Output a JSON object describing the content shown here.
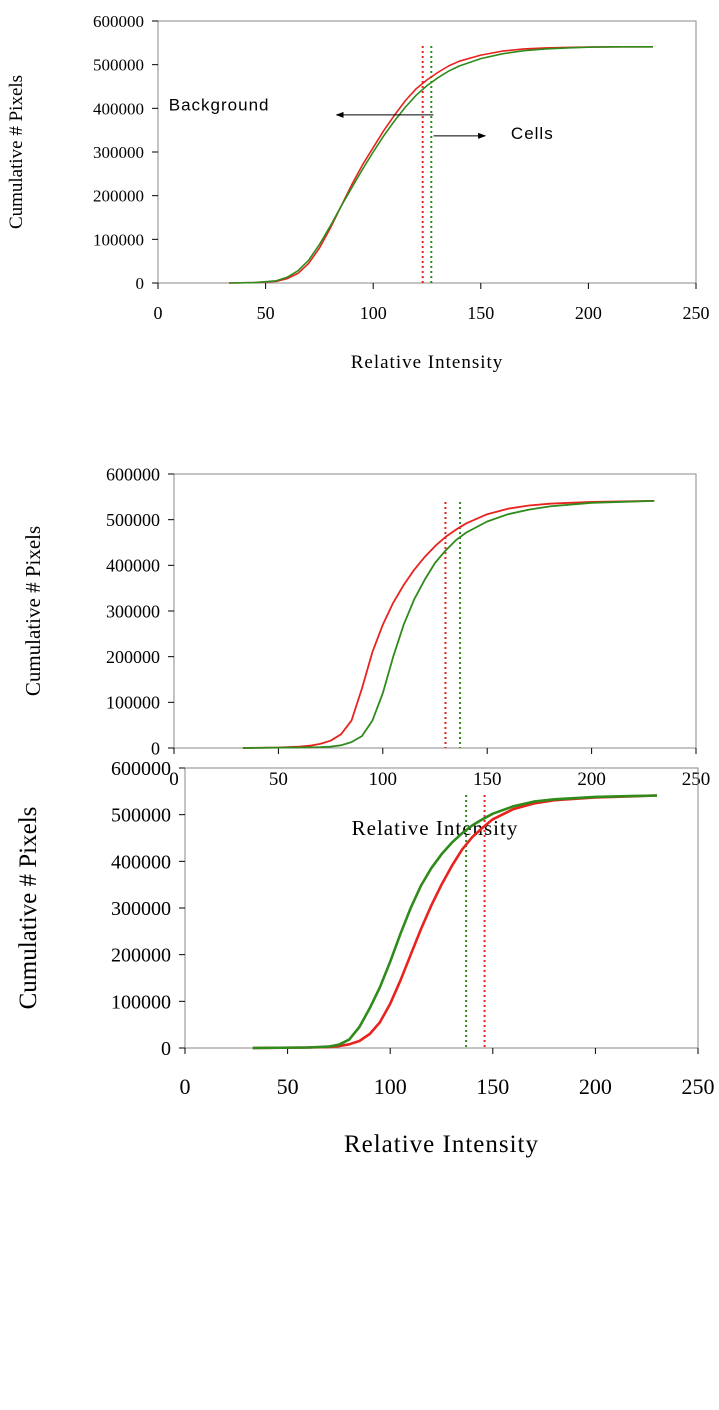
{
  "chart_data": [
    {
      "type": "line",
      "title": "",
      "xlabel": "Relative Intensity",
      "ylabel": "Cumulative # Pixels",
      "xlim": [
        0,
        250
      ],
      "ylim": [
        0,
        600000
      ],
      "xticks": [
        "0",
        "50",
        "100",
        "150",
        "200",
        "250"
      ],
      "yticks": [
        "0",
        "100000",
        "200000",
        "300000",
        "400000",
        "500000",
        "600000"
      ],
      "grid": false,
      "legend": "none",
      "series": [
        {
          "color": "#e8231d",
          "x": [
            33,
            45,
            55,
            60,
            65,
            70,
            75,
            80,
            85,
            90,
            95,
            100,
            105,
            110,
            115,
            120,
            125,
            130,
            135,
            140,
            150,
            160,
            170,
            180,
            190,
            200,
            215,
            230
          ],
          "y": [
            0,
            1000,
            4000,
            10000,
            22000,
            45000,
            80000,
            125000,
            175000,
            225000,
            270000,
            310000,
            350000,
            385000,
            418000,
            445000,
            465000,
            482000,
            497000,
            508000,
            522000,
            531000,
            536000,
            538500,
            539500,
            540500,
            541000,
            541000
          ]
        },
        {
          "color": "#2e8b1c",
          "x": [
            33,
            45,
            55,
            60,
            65,
            70,
            75,
            80,
            85,
            90,
            95,
            100,
            105,
            110,
            115,
            120,
            125,
            130,
            135,
            140,
            150,
            160,
            170,
            180,
            190,
            200,
            215,
            230
          ],
          "y": [
            0,
            1000,
            5000,
            13000,
            28000,
            52000,
            88000,
            130000,
            175000,
            218000,
            260000,
            300000,
            338000,
            372000,
            403000,
            430000,
            452000,
            470000,
            485000,
            497000,
            514000,
            525000,
            532000,
            536000,
            538500,
            540000,
            541000,
            541000
          ]
        }
      ],
      "reference_lines": [
        {
          "x": 123,
          "color": "#e8231d",
          "style": "dotted"
        },
        {
          "x": 127,
          "color": "#2e8b1c",
          "style": "dotted"
        }
      ],
      "annotations": [
        {
          "text": "Background",
          "arrow": "left",
          "x": 5,
          "y": 395000,
          "arrow_from_x": 128,
          "arrow_to_x": 83,
          "arrow_y": 385000
        },
        {
          "text": "Cells",
          "arrow": "right",
          "x": 164,
          "y": 330000,
          "arrow_from_x": 128,
          "arrow_to_x": 152,
          "arrow_y": 337000
        }
      ]
    },
    {
      "type": "line",
      "title": "",
      "xlabel": "Relative Intensity",
      "ylabel": "Cumulative # Pixels",
      "xlim": [
        0,
        250
      ],
      "ylim": [
        0,
        600000
      ],
      "xticks": [
        "0",
        "50",
        "100",
        "150",
        "200",
        "250"
      ],
      "yticks": [
        "0",
        "100000",
        "200000",
        "300000",
        "400000",
        "500000",
        "600000"
      ],
      "grid": false,
      "legend": "none",
      "series": [
        {
          "color": "#e8231d",
          "x": [
            33,
            50,
            60,
            65,
            70,
            75,
            80,
            85,
            90,
            95,
            100,
            105,
            110,
            115,
            120,
            125,
            130,
            135,
            140,
            150,
            160,
            170,
            180,
            200,
            230
          ],
          "y": [
            0,
            1000,
            3000,
            5000,
            9000,
            16000,
            30000,
            60000,
            130000,
            210000,
            270000,
            318000,
            357000,
            390000,
            418000,
            442000,
            462000,
            478000,
            492000,
            512000,
            524000,
            531000,
            535000,
            539000,
            541000
          ]
        },
        {
          "color": "#2e8b1c",
          "x": [
            33,
            60,
            70,
            75,
            80,
            85,
            90,
            95,
            100,
            105,
            110,
            115,
            120,
            125,
            130,
            135,
            140,
            150,
            160,
            170,
            180,
            200,
            230
          ],
          "y": [
            0,
            1000,
            2000,
            3000,
            6000,
            13000,
            26000,
            60000,
            120000,
            200000,
            270000,
            325000,
            368000,
            405000,
            432000,
            455000,
            472000,
            496000,
            512000,
            522000,
            529000,
            537000,
            541000
          ]
        }
      ],
      "reference_lines": [
        {
          "x": 130,
          "color": "#e8231d",
          "style": "dotted"
        },
        {
          "x": 137,
          "color": "#2e8b1c",
          "style": "dotted"
        }
      ],
      "annotations": []
    },
    {
      "type": "line",
      "title": "",
      "xlabel": "Relative Intensity",
      "ylabel": "Cumulative # Pixels",
      "xlim": [
        0,
        250
      ],
      "ylim": [
        0,
        600000
      ],
      "xticks": [
        "0",
        "50",
        "100",
        "150",
        "200",
        "250"
      ],
      "yticks": [
        "0",
        "100000",
        "200000",
        "300000",
        "400000",
        "500000",
        "600000"
      ],
      "grid": false,
      "legend": "none",
      "series": [
        {
          "color": "#e8231d",
          "x": [
            33,
            60,
            70,
            75,
            80,
            85,
            90,
            95,
            100,
            105,
            110,
            115,
            120,
            125,
            130,
            135,
            140,
            145,
            150,
            160,
            170,
            180,
            200,
            230
          ],
          "y": [
            0,
            1000,
            2000,
            4000,
            8000,
            15000,
            30000,
            55000,
            95000,
            145000,
            200000,
            255000,
            305000,
            350000,
            390000,
            425000,
            452000,
            472000,
            490000,
            512000,
            524000,
            531000,
            537000,
            541000
          ]
        },
        {
          "color": "#2e8b1c",
          "x": [
            33,
            60,
            70,
            75,
            80,
            85,
            90,
            95,
            100,
            105,
            110,
            115,
            120,
            125,
            130,
            135,
            140,
            145,
            150,
            160,
            170,
            180,
            200,
            230
          ],
          "y": [
            0,
            1000,
            3000,
            7000,
            18000,
            45000,
            85000,
            130000,
            185000,
            245000,
            300000,
            348000,
            385000,
            415000,
            440000,
            460000,
            477000,
            490000,
            502000,
            518000,
            528000,
            533000,
            538000,
            541000
          ]
        }
      ],
      "reference_lines": [
        {
          "x": 146,
          "color": "#e8231d",
          "style": "dotted"
        },
        {
          "x": 137,
          "color": "#2e8b1c",
          "style": "dotted"
        }
      ],
      "annotations": []
    }
  ]
}
